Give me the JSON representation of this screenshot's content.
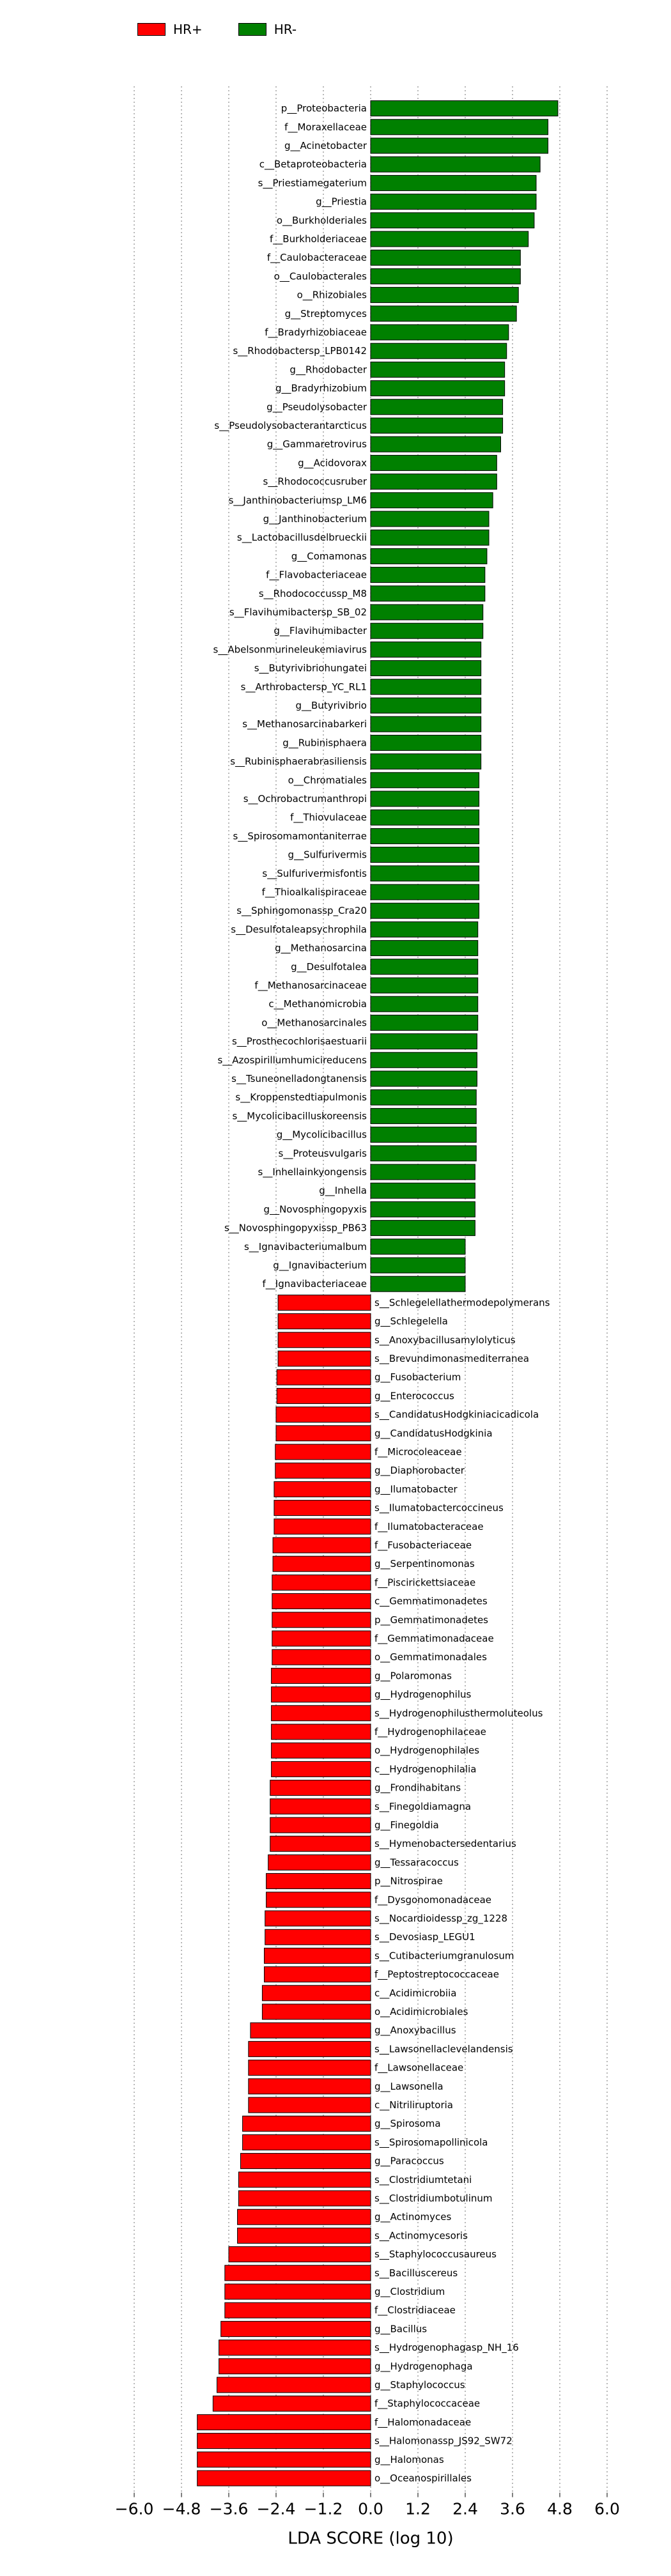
{
  "chart_data": {
    "type": "bar",
    "orientation": "horizontal",
    "xlabel": "LDA SCORE (log 10)",
    "xlim": [
      -6.0,
      6.0
    ],
    "xticks": [
      -6.0,
      -4.8,
      -3.6,
      -2.4,
      -1.2,
      0.0,
      1.2,
      2.4,
      3.6,
      4.8,
      6.0
    ],
    "xtick_labels": [
      "−6.0",
      "−4.8",
      "−3.6",
      "−2.4",
      "−1.2",
      "0.0",
      "1.2",
      "2.4",
      "3.6",
      "4.8",
      "6.0"
    ],
    "grid": "vertical dotted",
    "legend_position": "top-left",
    "series": [
      {
        "name": "HR+",
        "color": "#ff0000"
      },
      {
        "name": "HR-",
        "color": "#008000"
      }
    ],
    "bars": [
      {
        "label": "p__Proteobacteria",
        "value": 4.75,
        "group": "HR-"
      },
      {
        "label": "f__Moraxellaceae",
        "value": 4.5,
        "group": "HR-"
      },
      {
        "label": "g__Acinetobacter",
        "value": 4.5,
        "group": "HR-"
      },
      {
        "label": "c__Betaproteobacteria",
        "value": 4.3,
        "group": "HR-"
      },
      {
        "label": "s__Priestiamegaterium",
        "value": 4.2,
        "group": "HR-"
      },
      {
        "label": "g__Priestia",
        "value": 4.2,
        "group": "HR-"
      },
      {
        "label": "o__Burkholderiales",
        "value": 4.15,
        "group": "HR-"
      },
      {
        "label": "f__Burkholderiaceae",
        "value": 4.0,
        "group": "HR-"
      },
      {
        "label": "f__Caulobacteraceae",
        "value": 3.8,
        "group": "HR-"
      },
      {
        "label": "o__Caulobacterales",
        "value": 3.8,
        "group": "HR-"
      },
      {
        "label": "o__Rhizobiales",
        "value": 3.75,
        "group": "HR-"
      },
      {
        "label": "g__Streptomyces",
        "value": 3.7,
        "group": "HR-"
      },
      {
        "label": "f__Bradyrhizobiaceae",
        "value": 3.5,
        "group": "HR-"
      },
      {
        "label": "s__Rhodobactersp_LPB0142",
        "value": 3.45,
        "group": "HR-"
      },
      {
        "label": "g__Rhodobacter",
        "value": 3.4,
        "group": "HR-"
      },
      {
        "label": "g__Bradyrhizobium",
        "value": 3.4,
        "group": "HR-"
      },
      {
        "label": "g__Pseudolysobacter",
        "value": 3.35,
        "group": "HR-"
      },
      {
        "label": "s__Pseudolysobacterantarcticus",
        "value": 3.35,
        "group": "HR-"
      },
      {
        "label": "g__Gammaretrovirus",
        "value": 3.3,
        "group": "HR-"
      },
      {
        "label": "g__Acidovorax",
        "value": 3.2,
        "group": "HR-"
      },
      {
        "label": "s__Rhodococcusruber",
        "value": 3.2,
        "group": "HR-"
      },
      {
        "label": "s__Janthinobacteriumsp_LM6",
        "value": 3.1,
        "group": "HR-"
      },
      {
        "label": "g__Janthinobacterium",
        "value": 3.0,
        "group": "HR-"
      },
      {
        "label": "s__Lactobacillusdelbrueckii",
        "value": 3.0,
        "group": "HR-"
      },
      {
        "label": "g__Comamonas",
        "value": 2.95,
        "group": "HR-"
      },
      {
        "label": "f__Flavobacteriaceae",
        "value": 2.9,
        "group": "HR-"
      },
      {
        "label": "s__Rhodococcussp_M8",
        "value": 2.9,
        "group": "HR-"
      },
      {
        "label": "s__Flavihumibactersp_SB_02",
        "value": 2.85,
        "group": "HR-"
      },
      {
        "label": "g__Flavihumibacter",
        "value": 2.85,
        "group": "HR-"
      },
      {
        "label": "s__Abelsonmurineleukemiavirus",
        "value": 2.8,
        "group": "HR-"
      },
      {
        "label": "s__Butyrivibriohungatei",
        "value": 2.8,
        "group": "HR-"
      },
      {
        "label": "s__Arthrobactersp_YC_RL1",
        "value": 2.8,
        "group": "HR-"
      },
      {
        "label": "g__Butyrivibrio",
        "value": 2.8,
        "group": "HR-"
      },
      {
        "label": "s__Methanosarcinabarkeri",
        "value": 2.8,
        "group": "HR-"
      },
      {
        "label": "g__Rubinisphaera",
        "value": 2.8,
        "group": "HR-"
      },
      {
        "label": "s__Rubinisphaerabrasiliensis",
        "value": 2.8,
        "group": "HR-"
      },
      {
        "label": "o__Chromatiales",
        "value": 2.75,
        "group": "HR-"
      },
      {
        "label": "s__Ochrobactrumanthropi",
        "value": 2.75,
        "group": "HR-"
      },
      {
        "label": "f__Thiovulaceae",
        "value": 2.75,
        "group": "HR-"
      },
      {
        "label": "s__Spirosomamontaniterrae",
        "value": 2.75,
        "group": "HR-"
      },
      {
        "label": "g__Sulfurivermis",
        "value": 2.75,
        "group": "HR-"
      },
      {
        "label": "s__Sulfurivermisfontis",
        "value": 2.75,
        "group": "HR-"
      },
      {
        "label": "f__Thioalkalispiraceae",
        "value": 2.75,
        "group": "HR-"
      },
      {
        "label": "s__Sphingomonassp_Cra20",
        "value": 2.75,
        "group": "HR-"
      },
      {
        "label": "s__Desulfotaleapsychrophila",
        "value": 2.72,
        "group": "HR-"
      },
      {
        "label": "g__Methanosarcina",
        "value": 2.72,
        "group": "HR-"
      },
      {
        "label": "g__Desulfotalea",
        "value": 2.72,
        "group": "HR-"
      },
      {
        "label": "f__Methanosarcinaceae",
        "value": 2.72,
        "group": "HR-"
      },
      {
        "label": "c__Methanomicrobia",
        "value": 2.72,
        "group": "HR-"
      },
      {
        "label": "o__Methanosarcinales",
        "value": 2.72,
        "group": "HR-"
      },
      {
        "label": "s__Prosthecochlorisaestuarii",
        "value": 2.7,
        "group": "HR-"
      },
      {
        "label": "s__Azospirillumhumicireducens",
        "value": 2.7,
        "group": "HR-"
      },
      {
        "label": "s__Tsuneonelladongtanensis",
        "value": 2.7,
        "group": "HR-"
      },
      {
        "label": "s__Kroppenstedtiapulmonis",
        "value": 2.68,
        "group": "HR-"
      },
      {
        "label": "s__Mycolicibacilluskoreensis",
        "value": 2.68,
        "group": "HR-"
      },
      {
        "label": "g__Mycolicibacillus",
        "value": 2.68,
        "group": "HR-"
      },
      {
        "label": "s__Proteusvulgaris",
        "value": 2.68,
        "group": "HR-"
      },
      {
        "label": "s__Inhellainkyongensis",
        "value": 2.65,
        "group": "HR-"
      },
      {
        "label": "g__Inhella",
        "value": 2.65,
        "group": "HR-"
      },
      {
        "label": "g__Novosphingopyxis",
        "value": 2.65,
        "group": "HR-"
      },
      {
        "label": "s__Novosphingopyxissp_PB63",
        "value": 2.65,
        "group": "HR-"
      },
      {
        "label": "s__Ignavibacteriumalbum",
        "value": 2.4,
        "group": "HR-"
      },
      {
        "label": "g__Ignavibacterium",
        "value": 2.4,
        "group": "HR-"
      },
      {
        "label": "f__Ignavibacteriaceae",
        "value": 2.4,
        "group": "HR-"
      },
      {
        "label": "s__Schlegelellathermodepolymerans",
        "value": -2.35,
        "group": "HR+"
      },
      {
        "label": "g__Schlegelella",
        "value": -2.35,
        "group": "HR+"
      },
      {
        "label": "s__Anoxybacillusamylolyticus",
        "value": -2.35,
        "group": "HR+"
      },
      {
        "label": "s__Brevundimonasmediterranea",
        "value": -2.35,
        "group": "HR+"
      },
      {
        "label": "g__Fusobacterium",
        "value": -2.38,
        "group": "HR+"
      },
      {
        "label": "g__Enterococcus",
        "value": -2.38,
        "group": "HR+"
      },
      {
        "label": "s__CandidatusHodgkiniacicadicola",
        "value": -2.4,
        "group": "HR+"
      },
      {
        "label": "g__CandidatusHodgkinia",
        "value": -2.4,
        "group": "HR+"
      },
      {
        "label": "f__Microcoleaceae",
        "value": -2.42,
        "group": "HR+"
      },
      {
        "label": "g__Diaphorobacter",
        "value": -2.42,
        "group": "HR+"
      },
      {
        "label": "g__Ilumatobacter",
        "value": -2.45,
        "group": "HR+"
      },
      {
        "label": "s__Ilumatobactercoccineus",
        "value": -2.45,
        "group": "HR+"
      },
      {
        "label": "f__Ilumatobacteraceae",
        "value": -2.45,
        "group": "HR+"
      },
      {
        "label": "f__Fusobacteriaceae",
        "value": -2.48,
        "group": "HR+"
      },
      {
        "label": "g__Serpentinomonas",
        "value": -2.48,
        "group": "HR+"
      },
      {
        "label": "f__Piscirickettsiaceae",
        "value": -2.5,
        "group": "HR+"
      },
      {
        "label": "c__Gemmatimonadetes",
        "value": -2.5,
        "group": "HR+"
      },
      {
        "label": "p__Gemmatimonadetes",
        "value": -2.5,
        "group": "HR+"
      },
      {
        "label": "f__Gemmatimonadaceae",
        "value": -2.5,
        "group": "HR+"
      },
      {
        "label": "o__Gemmatimonadales",
        "value": -2.5,
        "group": "HR+"
      },
      {
        "label": "g__Polaromonas",
        "value": -2.52,
        "group": "HR+"
      },
      {
        "label": "g__Hydrogenophilus",
        "value": -2.52,
        "group": "HR+"
      },
      {
        "label": "s__Hydrogenophilusthermoluteolus",
        "value": -2.52,
        "group": "HR+"
      },
      {
        "label": "f__Hydrogenophilaceae",
        "value": -2.52,
        "group": "HR+"
      },
      {
        "label": "o__Hydrogenophilales",
        "value": -2.52,
        "group": "HR+"
      },
      {
        "label": "c__Hydrogenophilalia",
        "value": -2.52,
        "group": "HR+"
      },
      {
        "label": "g__Frondihabitans",
        "value": -2.55,
        "group": "HR+"
      },
      {
        "label": "s__Finegoldiamagna",
        "value": -2.55,
        "group": "HR+"
      },
      {
        "label": "g__Finegoldia",
        "value": -2.55,
        "group": "HR+"
      },
      {
        "label": "s__Hymenobactersedentarius",
        "value": -2.55,
        "group": "HR+"
      },
      {
        "label": "g__Tessaracoccus",
        "value": -2.6,
        "group": "HR+"
      },
      {
        "label": "p__Nitrospirae",
        "value": -2.65,
        "group": "HR+"
      },
      {
        "label": "f__Dysgonomonadaceae",
        "value": -2.65,
        "group": "HR+"
      },
      {
        "label": "s__Nocardioidessp_zg_1228",
        "value": -2.68,
        "group": "HR+"
      },
      {
        "label": "s__Devosiasp_LEGU1",
        "value": -2.68,
        "group": "HR+"
      },
      {
        "label": "s__Cutibacteriumgranulosum",
        "value": -2.7,
        "group": "HR+"
      },
      {
        "label": "f__Peptostreptococcaceae",
        "value": -2.7,
        "group": "HR+"
      },
      {
        "label": "c__Acidimicrobiia",
        "value": -2.75,
        "group": "HR+"
      },
      {
        "label": "o__Acidimicrobiales",
        "value": -2.75,
        "group": "HR+"
      },
      {
        "label": "g__Anoxybacillus",
        "value": -3.05,
        "group": "HR+"
      },
      {
        "label": "s__Lawsonellaclevelandensis",
        "value": -3.1,
        "group": "HR+"
      },
      {
        "label": "f__Lawsonellaceae",
        "value": -3.1,
        "group": "HR+"
      },
      {
        "label": "g__Lawsonella",
        "value": -3.1,
        "group": "HR+"
      },
      {
        "label": "c__Nitriliruptoria",
        "value": -3.1,
        "group": "HR+"
      },
      {
        "label": "g__Spirosoma",
        "value": -3.25,
        "group": "HR+"
      },
      {
        "label": "s__Spirosomapollinicola",
        "value": -3.25,
        "group": "HR+"
      },
      {
        "label": "g__Paracoccus",
        "value": -3.3,
        "group": "HR+"
      },
      {
        "label": "s__Clostridiumtetani",
        "value": -3.35,
        "group": "HR+"
      },
      {
        "label": "s__Clostridiumbotulinum",
        "value": -3.35,
        "group": "HR+"
      },
      {
        "label": "g__Actinomyces",
        "value": -3.38,
        "group": "HR+"
      },
      {
        "label": "s__Actinomycesoris",
        "value": -3.38,
        "group": "HR+"
      },
      {
        "label": "s__Staphylococcusaureus",
        "value": -3.6,
        "group": "HR+"
      },
      {
        "label": "s__Bacilluscereus",
        "value": -3.7,
        "group": "HR+"
      },
      {
        "label": "g__Clostridium",
        "value": -3.7,
        "group": "HR+"
      },
      {
        "label": "f__Clostridiaceae",
        "value": -3.7,
        "group": "HR+"
      },
      {
        "label": "g__Bacillus",
        "value": -3.8,
        "group": "HR+"
      },
      {
        "label": "s__Hydrogenophagasp_NH_16",
        "value": -3.85,
        "group": "HR+"
      },
      {
        "label": "g__Hydrogenophaga",
        "value": -3.85,
        "group": "HR+"
      },
      {
        "label": "g__Staphylococcus",
        "value": -3.9,
        "group": "HR+"
      },
      {
        "label": "f__Staphylococcaceae",
        "value": -4.0,
        "group": "HR+"
      },
      {
        "label": "f__Halomonadaceae",
        "value": -4.4,
        "group": "HR+"
      },
      {
        "label": "s__Halomonassp_JS92_SW72",
        "value": -4.4,
        "group": "HR+"
      },
      {
        "label": "g__Halomonas",
        "value": -4.4,
        "group": "HR+"
      },
      {
        "label": "o__Oceanospirillales",
        "value": -4.4,
        "group": "HR+"
      }
    ]
  }
}
